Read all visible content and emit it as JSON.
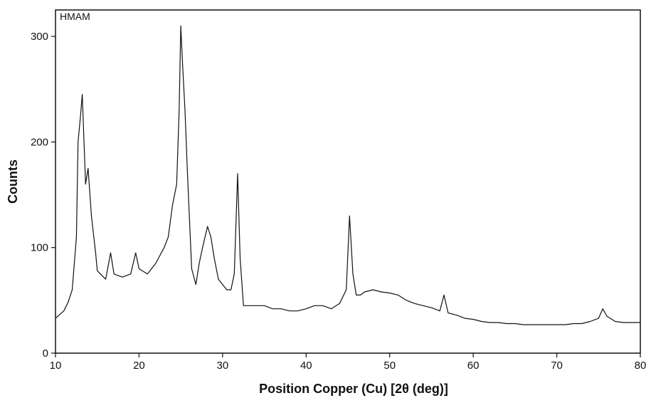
{
  "chart_data": {
    "type": "line",
    "title": "",
    "sample_label": "HMAM",
    "xlabel": "Position Copper (Cu) [2θ (deg)]",
    "ylabel": "Counts",
    "xlim": [
      10,
      80
    ],
    "ylim": [
      0,
      325
    ],
    "xticks": [
      10,
      20,
      30,
      40,
      50,
      60,
      70,
      80
    ],
    "yticks": [
      0,
      100,
      200,
      300
    ],
    "grid": false,
    "legend": "none",
    "line_color": "#111111",
    "series": [
      {
        "x": [
          10,
          11,
          11.5,
          12,
          12.5,
          12.7,
          13,
          13.2,
          13.6,
          13.9,
          14.3,
          14.8,
          15,
          16,
          16.6,
          17,
          18,
          19,
          19.6,
          20,
          21,
          22,
          23,
          23.5,
          24,
          24.5,
          24.8,
          25.0,
          25.2,
          25.5,
          25.8,
          26.3,
          26.8,
          27.2,
          27.6,
          28.2,
          28.6,
          29,
          29.5,
          30,
          30.5,
          31,
          31.4,
          31.8,
          32.1,
          32.5,
          33,
          34,
          35,
          36,
          37,
          38,
          39,
          40,
          41,
          42,
          43,
          44,
          44.8,
          45.2,
          45.6,
          46,
          46.5,
          47,
          48,
          49,
          50,
          51,
          52,
          53,
          54,
          55,
          56,
          56.5,
          57,
          58,
          59,
          60,
          61,
          62,
          63,
          64,
          65,
          66,
          67,
          68,
          69,
          70,
          71,
          72,
          73,
          74,
          75,
          75.5,
          76,
          77,
          78,
          79,
          80
        ],
        "values": [
          33,
          40,
          48,
          60,
          110,
          200,
          225,
          245,
          160,
          175,
          130,
          95,
          78,
          70,
          95,
          75,
          72,
          75,
          95,
          80,
          75,
          85,
          100,
          110,
          140,
          160,
          230,
          310,
          275,
          230,
          170,
          80,
          65,
          85,
          100,
          120,
          110,
          90,
          70,
          65,
          60,
          60,
          75,
          170,
          90,
          45,
          45,
          45,
          45,
          42,
          42,
          40,
          40,
          42,
          45,
          45,
          42,
          47,
          60,
          130,
          75,
          55,
          55,
          58,
          60,
          58,
          57,
          55,
          50,
          47,
          45,
          43,
          40,
          55,
          38,
          36,
          33,
          32,
          30,
          29,
          29,
          28,
          28,
          27,
          27,
          27,
          27,
          27,
          27,
          28,
          28,
          30,
          33,
          42,
          35,
          30,
          29,
          29,
          29
        ]
      }
    ]
  }
}
